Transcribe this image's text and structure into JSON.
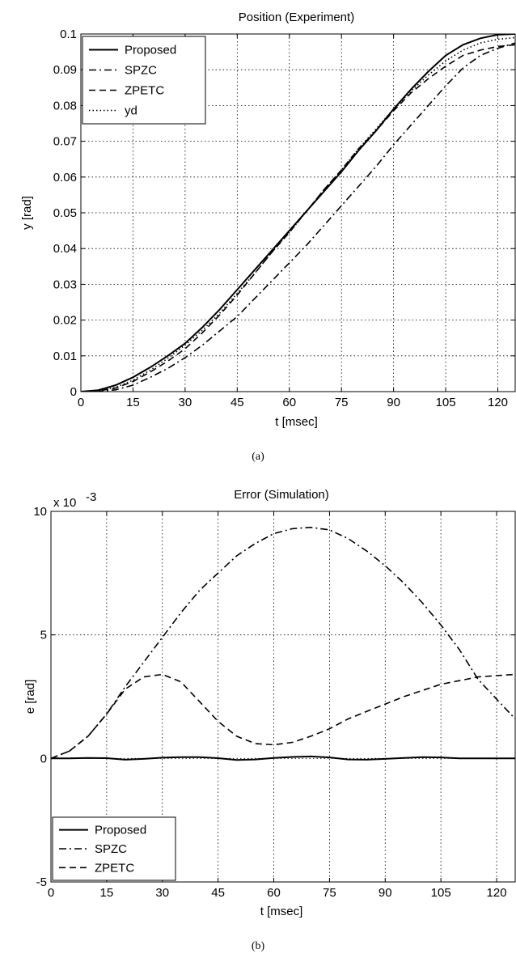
{
  "chart_data": [
    {
      "type": "line",
      "title": "Position (Experiment)",
      "xlabel": "t [msec]",
      "ylabel": "y [rad]",
      "caption": "(a)",
      "xlim": [
        0,
        125
      ],
      "ylim": [
        0,
        0.1
      ],
      "xticks": [
        0,
        15,
        30,
        45,
        60,
        75,
        90,
        105,
        120
      ],
      "yticks": [
        0,
        0.01,
        0.02,
        0.03,
        0.04,
        0.05,
        0.06,
        0.07,
        0.08,
        0.09,
        0.1
      ],
      "xtick_labels": [
        "0",
        "15",
        "30",
        "45",
        "60",
        "75",
        "90",
        "105",
        "120"
      ],
      "ytick_labels": [
        "0",
        "0.01",
        "0.02",
        "0.03",
        "0.04",
        "0.05",
        "0.06",
        "0.07",
        "0.08",
        "0.09",
        "0.1"
      ],
      "grid": true,
      "legend": "top-left",
      "series": [
        {
          "name": "Proposed",
          "style": "solid",
          "x": [
            0,
            5,
            10,
            15,
            20,
            25,
            30,
            35,
            40,
            45,
            50,
            55,
            60,
            65,
            70,
            75,
            80,
            85,
            90,
            95,
            100,
            105,
            110,
            115,
            120,
            125
          ],
          "y": [
            0,
            0.0004,
            0.0018,
            0.004,
            0.0068,
            0.01,
            0.0135,
            0.018,
            0.023,
            0.0285,
            0.034,
            0.0395,
            0.045,
            0.0505,
            0.056,
            0.0615,
            0.0675,
            0.073,
            0.079,
            0.0845,
            0.0895,
            0.094,
            0.097,
            0.0988,
            0.0998,
            0.1
          ]
        },
        {
          "name": "SPZC",
          "style": "dashdot",
          "x": [
            0,
            5,
            10,
            15,
            20,
            25,
            30,
            35,
            40,
            45,
            50,
            55,
            60,
            65,
            70,
            75,
            80,
            85,
            90,
            95,
            100,
            105,
            110,
            115,
            120,
            125
          ],
          "y": [
            0,
            0.0001,
            0.0005,
            0.0018,
            0.004,
            0.0065,
            0.0095,
            0.013,
            0.017,
            0.021,
            0.026,
            0.031,
            0.036,
            0.041,
            0.0465,
            0.052,
            0.0575,
            0.063,
            0.069,
            0.0745,
            0.08,
            0.0855,
            0.0905,
            0.094,
            0.096,
            0.0975
          ]
        },
        {
          "name": "ZPETC",
          "style": "dashed",
          "x": [
            0,
            5,
            10,
            15,
            20,
            25,
            30,
            35,
            40,
            45,
            50,
            55,
            60,
            65,
            70,
            75,
            80,
            85,
            90,
            95,
            100,
            105,
            110,
            115,
            120,
            125
          ],
          "y": [
            0,
            0.0002,
            0.001,
            0.0028,
            0.0055,
            0.0085,
            0.012,
            0.0165,
            0.0215,
            0.027,
            0.033,
            0.039,
            0.0445,
            0.0505,
            0.0565,
            0.062,
            0.068,
            0.073,
            0.0785,
            0.0835,
            0.0875,
            0.091,
            0.094,
            0.0955,
            0.0965,
            0.097
          ]
        },
        {
          "name": "yd",
          "style": "dotted",
          "x": [
            0,
            5,
            10,
            15,
            20,
            25,
            30,
            35,
            40,
            45,
            50,
            55,
            60,
            65,
            70,
            75,
            80,
            85,
            90,
            95,
            100,
            105,
            110,
            115,
            120,
            125
          ],
          "y": [
            0,
            0.0002,
            0.0012,
            0.0032,
            0.006,
            0.0093,
            0.013,
            0.0172,
            0.022,
            0.0275,
            0.033,
            0.039,
            0.0445,
            0.0505,
            0.0565,
            0.062,
            0.068,
            0.0735,
            0.079,
            0.084,
            0.0885,
            0.0925,
            0.0955,
            0.0975,
            0.0985,
            0.099
          ]
        }
      ]
    },
    {
      "type": "line",
      "title": "Error (Simulation)",
      "xlabel": "t [msec]",
      "ylabel": "e [rad]",
      "caption": "(b)",
      "exponent_label": "x 10",
      "exponent_power": "-3",
      "xlim": [
        0,
        125
      ],
      "ylim": [
        -5,
        10
      ],
      "xticks": [
        0,
        15,
        30,
        45,
        60,
        75,
        90,
        105,
        120
      ],
      "yticks": [
        -5,
        0,
        5,
        10
      ],
      "xtick_labels": [
        "0",
        "15",
        "30",
        "45",
        "60",
        "75",
        "90",
        "105",
        "120"
      ],
      "ytick_labels": [
        "-5",
        "0",
        "5",
        "10"
      ],
      "grid": true,
      "legend": "bottom-left",
      "series": [
        {
          "name": "Proposed",
          "style": "solid",
          "x": [
            0,
            5,
            10,
            15,
            20,
            25,
            30,
            35,
            40,
            45,
            50,
            55,
            60,
            65,
            70,
            75,
            80,
            85,
            90,
            95,
            100,
            105,
            110,
            115,
            120,
            125
          ],
          "y": [
            0,
            0,
            0.02,
            0.01,
            -0.05,
            -0.02,
            0.03,
            0.05,
            0.05,
            0.01,
            -0.06,
            -0.04,
            0.02,
            0.06,
            0.08,
            0.04,
            -0.04,
            -0.05,
            -0.02,
            0.02,
            0.05,
            0.04,
            0,
            0,
            0,
            0
          ]
        },
        {
          "name": "SPZC",
          "style": "dashdot",
          "x": [
            0,
            5,
            10,
            15,
            20,
            25,
            30,
            35,
            40,
            45,
            50,
            55,
            60,
            65,
            70,
            75,
            80,
            85,
            90,
            95,
            100,
            105,
            110,
            115,
            120,
            125
          ],
          "y": [
            0,
            0.3,
            0.9,
            1.8,
            2.9,
            3.9,
            4.9,
            5.9,
            6.8,
            7.5,
            8.2,
            8.7,
            9.1,
            9.3,
            9.35,
            9.25,
            8.9,
            8.4,
            7.8,
            7.1,
            6.3,
            5.4,
            4.4,
            3.2,
            2.4,
            1.6
          ]
        },
        {
          "name": "ZPETC",
          "style": "dashed",
          "x": [
            0,
            5,
            10,
            15,
            20,
            25,
            30,
            35,
            40,
            45,
            50,
            55,
            60,
            65,
            70,
            75,
            80,
            85,
            90,
            95,
            100,
            105,
            110,
            115,
            120,
            125
          ],
          "y": [
            0,
            0.3,
            0.9,
            1.8,
            2.8,
            3.3,
            3.4,
            3.1,
            2.3,
            1.5,
            0.9,
            0.6,
            0.55,
            0.65,
            0.9,
            1.2,
            1.6,
            1.9,
            2.2,
            2.5,
            2.75,
            3.0,
            3.15,
            3.3,
            3.35,
            3.4
          ]
        }
      ]
    }
  ]
}
